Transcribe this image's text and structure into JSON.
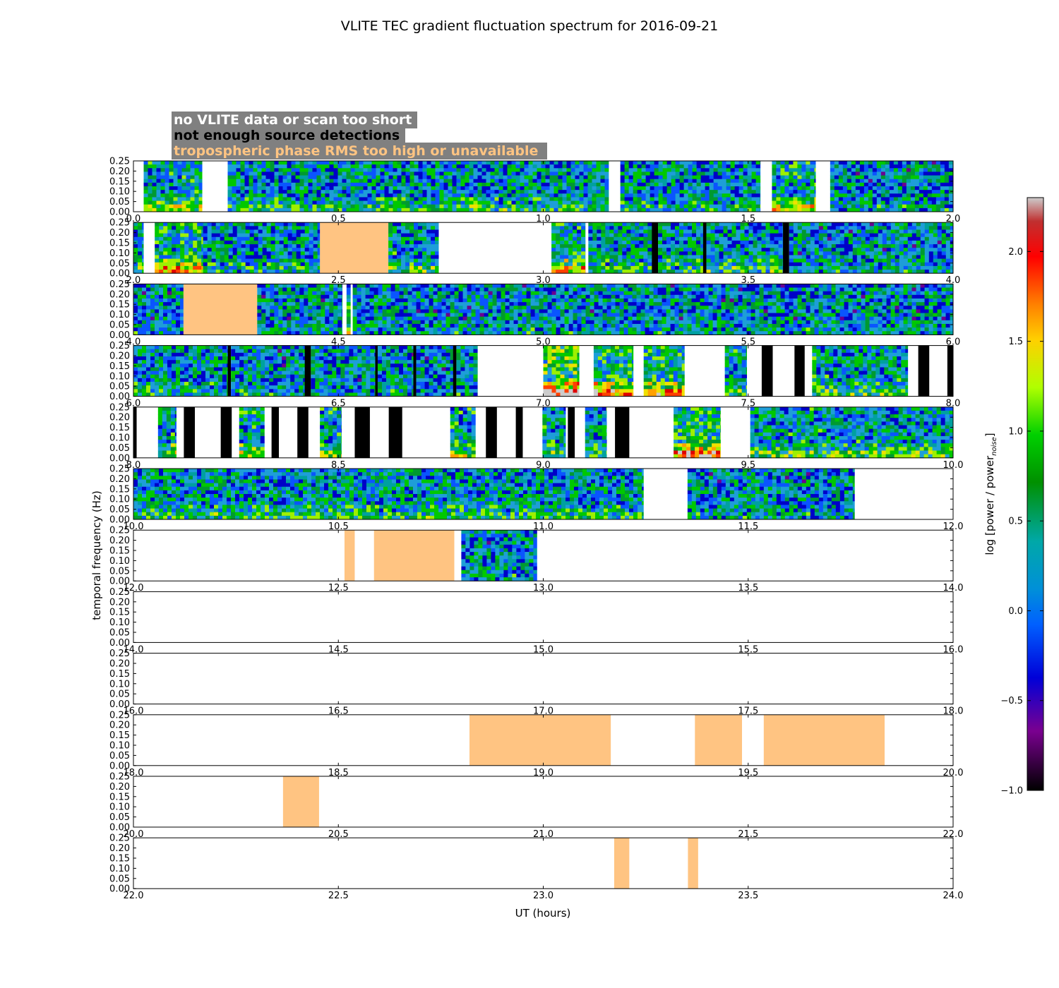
{
  "chart_data": {
    "type": "heatmap",
    "title": "VLITE TEC gradient fluctuation spectrum for 2016-09-21",
    "xlabel": "UT (hours)",
    "ylabel": "temporal frequency (Hz)",
    "ylim": [
      0,
      0.25
    ],
    "yticks": [
      0.0,
      0.05,
      0.1,
      0.15,
      0.2,
      0.25
    ],
    "panel_hours": 2,
    "xtick_step": 0.5,
    "colorbar": {
      "label": "log [power / power",
      "label_sub": "noise",
      "label_end": "]",
      "min": -1.0,
      "max": 2.3,
      "ticks": [
        -1.0,
        -0.5,
        0.0,
        0.5,
        1.0,
        1.5,
        2.0
      ],
      "colors": [
        "#000000",
        "#7a0090",
        "#0000d8",
        "#0080ff",
        "#00b0b0",
        "#009000",
        "#00d800",
        "#b0ff00",
        "#ffd000",
        "#ff8000",
        "#ff0000",
        "#cccccc"
      ]
    },
    "legend": [
      {
        "label": "no VLITE data or scan too short",
        "color": "#ffffff"
      },
      {
        "label": "not enough source detections",
        "color": "#000000"
      },
      {
        "label": "tropospheric phase RMS too high or unavailable",
        "color": "#ffc482"
      }
    ],
    "flag_colors": {
      "data": "#1e9ed8",
      "nodata": "#ffffff",
      "nodet": "#000000",
      "tropo": "#ffc482"
    },
    "panels": [
      {
        "start": 0,
        "end": 2,
        "segments": [
          {
            "type": "nodata",
            "from": 0.0,
            "to": 0.025
          },
          {
            "type": "data",
            "from": 0.025,
            "to": 0.168,
            "level": 0.3
          },
          {
            "type": "nodata",
            "from": 0.168,
            "to": 0.23
          },
          {
            "type": "data",
            "from": 0.23,
            "to": 1.16,
            "level": 0.15
          },
          {
            "type": "nodata",
            "from": 1.16,
            "to": 1.188
          },
          {
            "type": "data",
            "from": 1.188,
            "to": 1.53,
            "level": 0.1
          },
          {
            "type": "nodata",
            "from": 1.53,
            "to": 1.558
          },
          {
            "type": "data",
            "from": 1.558,
            "to": 1.665,
            "level": 0.4
          },
          {
            "type": "nodata",
            "from": 1.665,
            "to": 1.7
          },
          {
            "type": "data",
            "from": 1.7,
            "to": 2.0,
            "level": 0.05
          }
        ]
      },
      {
        "start": 2,
        "end": 4,
        "segments": [
          {
            "type": "data",
            "from": 2.0,
            "to": 2.025,
            "level": 0.2
          },
          {
            "type": "nodata",
            "from": 2.025,
            "to": 2.052
          },
          {
            "type": "data",
            "from": 2.052,
            "to": 2.17,
            "level": 0.45
          },
          {
            "type": "data",
            "from": 2.17,
            "to": 2.455,
            "level": 0.1
          },
          {
            "type": "tropo",
            "from": 2.455,
            "to": 2.622
          },
          {
            "type": "data",
            "from": 2.622,
            "to": 2.745,
            "level": 0.2
          },
          {
            "type": "nodata",
            "from": 2.745,
            "to": 3.02
          },
          {
            "type": "data",
            "from": 3.02,
            "to": 3.103,
            "level": 0.45
          },
          {
            "type": "nodata",
            "from": 3.103,
            "to": 3.11
          },
          {
            "type": "data",
            "from": 3.11,
            "to": 3.265,
            "level": 0.15
          },
          {
            "type": "nodet",
            "from": 3.265,
            "to": 3.28
          },
          {
            "type": "data",
            "from": 3.28,
            "to": 3.39,
            "level": 0.1
          },
          {
            "type": "nodet",
            "from": 3.39,
            "to": 3.398
          },
          {
            "type": "data",
            "from": 3.398,
            "to": 3.585,
            "level": 0.15
          },
          {
            "type": "nodet",
            "from": 3.585,
            "to": 3.6
          },
          {
            "type": "data",
            "from": 3.6,
            "to": 4.0,
            "level": 0.05
          }
        ]
      },
      {
        "start": 4,
        "end": 6,
        "segments": [
          {
            "type": "data",
            "from": 4.0,
            "to": 4.122,
            "level": 0.05
          },
          {
            "type": "tropo",
            "from": 4.122,
            "to": 4.302
          },
          {
            "type": "data",
            "from": 4.302,
            "to": 4.51,
            "level": 0.05
          },
          {
            "type": "nodata",
            "from": 4.51,
            "to": 4.52
          },
          {
            "type": "data",
            "from": 4.52,
            "to": 4.53,
            "level": 0.3
          },
          {
            "type": "nodata",
            "from": 4.53,
            "to": 4.535
          },
          {
            "type": "data",
            "from": 4.535,
            "to": 6.0,
            "level": 0.05
          }
        ]
      },
      {
        "start": 6,
        "end": 8,
        "segments": [
          {
            "type": "data",
            "from": 6.0,
            "to": 6.23,
            "level": 0.1
          },
          {
            "type": "nodet",
            "from": 6.23,
            "to": 6.238
          },
          {
            "type": "data",
            "from": 6.238,
            "to": 6.418,
            "level": 0.05
          },
          {
            "type": "nodet",
            "from": 6.418,
            "to": 6.433
          },
          {
            "type": "data",
            "from": 6.433,
            "to": 6.59,
            "level": 0.05
          },
          {
            "type": "nodet",
            "from": 6.59,
            "to": 6.596
          },
          {
            "type": "data",
            "from": 6.596,
            "to": 6.683,
            "level": 0.05
          },
          {
            "type": "nodet",
            "from": 6.683,
            "to": 6.69
          },
          {
            "type": "data",
            "from": 6.69,
            "to": 6.78,
            "level": 0.05
          },
          {
            "type": "nodet",
            "from": 6.78,
            "to": 6.788
          },
          {
            "type": "data",
            "from": 6.788,
            "to": 6.84,
            "level": 0.05
          },
          {
            "type": "nodata",
            "from": 6.84,
            "to": 7.0
          },
          {
            "type": "data",
            "from": 7.0,
            "to": 7.088,
            "level": 0.8
          },
          {
            "type": "nodata",
            "from": 7.088,
            "to": 7.123
          },
          {
            "type": "data",
            "from": 7.123,
            "to": 7.22,
            "level": 0.6
          },
          {
            "type": "nodata",
            "from": 7.22,
            "to": 7.245
          },
          {
            "type": "data",
            "from": 7.245,
            "to": 7.345,
            "level": 0.55
          },
          {
            "type": "nodata",
            "from": 7.345,
            "to": 7.443
          },
          {
            "type": "data",
            "from": 7.443,
            "to": 7.497,
            "level": 0.2
          },
          {
            "type": "nodata",
            "from": 7.497,
            "to": 7.533
          },
          {
            "type": "nodet",
            "from": 7.533,
            "to": 7.56
          },
          {
            "type": "nodata",
            "from": 7.56,
            "to": 7.613
          },
          {
            "type": "nodet",
            "from": 7.613,
            "to": 7.638
          },
          {
            "type": "nodata",
            "from": 7.638,
            "to": 7.656
          },
          {
            "type": "data",
            "from": 7.656,
            "to": 7.89,
            "level": 0.2
          },
          {
            "type": "nodata",
            "from": 7.89,
            "to": 7.915
          },
          {
            "type": "nodet",
            "from": 7.915,
            "to": 7.942
          },
          {
            "type": "nodata",
            "from": 7.942,
            "to": 7.986
          },
          {
            "type": "nodet",
            "from": 7.986,
            "to": 8.0
          }
        ]
      },
      {
        "start": 8,
        "end": 10,
        "segments": [
          {
            "type": "nodet",
            "from": 8.0,
            "to": 8.008
          },
          {
            "type": "nodata",
            "from": 8.008,
            "to": 8.06
          },
          {
            "type": "data",
            "from": 8.06,
            "to": 8.105,
            "level": 0.3
          },
          {
            "type": "nodata",
            "from": 8.105,
            "to": 8.123
          },
          {
            "type": "nodet",
            "from": 8.123,
            "to": 8.15
          },
          {
            "type": "nodata",
            "from": 8.15,
            "to": 8.213
          },
          {
            "type": "nodet",
            "from": 8.213,
            "to": 8.24
          },
          {
            "type": "nodata",
            "from": 8.24,
            "to": 8.258
          },
          {
            "type": "data",
            "from": 8.258,
            "to": 8.32,
            "level": 0.3
          },
          {
            "type": "nodata",
            "from": 8.32,
            "to": 8.337
          },
          {
            "type": "nodet",
            "from": 8.337,
            "to": 8.355
          },
          {
            "type": "nodata",
            "from": 8.355,
            "to": 8.4
          },
          {
            "type": "nodet",
            "from": 8.4,
            "to": 8.427
          },
          {
            "type": "nodata",
            "from": 8.427,
            "to": 8.455
          },
          {
            "type": "data",
            "from": 8.455,
            "to": 8.508,
            "level": 0.3
          },
          {
            "type": "nodata",
            "from": 8.508,
            "to": 8.54
          },
          {
            "type": "nodet",
            "from": 8.54,
            "to": 8.577
          },
          {
            "type": "nodata",
            "from": 8.577,
            "to": 8.623
          },
          {
            "type": "nodet",
            "from": 8.623,
            "to": 8.656
          },
          {
            "type": "nodata",
            "from": 8.656,
            "to": 8.773
          },
          {
            "type": "data",
            "from": 8.773,
            "to": 8.835,
            "level": 0.3
          },
          {
            "type": "nodata",
            "from": 8.835,
            "to": 8.86
          },
          {
            "type": "nodet",
            "from": 8.86,
            "to": 8.887
          },
          {
            "type": "nodata",
            "from": 8.887,
            "to": 8.933
          },
          {
            "type": "nodet",
            "from": 8.933,
            "to": 8.95
          },
          {
            "type": "nodata",
            "from": 8.95,
            "to": 8.998
          },
          {
            "type": "data",
            "from": 8.998,
            "to": 9.055,
            "level": 0.2
          },
          {
            "type": "nodata",
            "from": 9.055,
            "to": 9.06
          },
          {
            "type": "nodet",
            "from": 9.06,
            "to": 9.077
          },
          {
            "type": "nodata",
            "from": 9.077,
            "to": 9.102
          },
          {
            "type": "data",
            "from": 9.102,
            "to": 9.155,
            "level": 0.2
          },
          {
            "type": "nodata",
            "from": 9.155,
            "to": 9.175
          },
          {
            "type": "nodet",
            "from": 9.175,
            "to": 9.21
          },
          {
            "type": "nodata",
            "from": 9.21,
            "to": 9.318
          },
          {
            "type": "data",
            "from": 9.318,
            "to": 9.433,
            "level": 0.6
          },
          {
            "type": "nodata",
            "from": 9.433,
            "to": 9.505
          },
          {
            "type": "data",
            "from": 9.505,
            "to": 10.0,
            "level": 0.2
          }
        ]
      },
      {
        "start": 10,
        "end": 12,
        "segments": [
          {
            "type": "data",
            "from": 10.0,
            "to": 11.245,
            "level": 0.15
          },
          {
            "type": "nodata",
            "from": 11.245,
            "to": 11.352
          },
          {
            "type": "data",
            "from": 11.352,
            "to": 11.76,
            "level": 0.05
          },
          {
            "type": "nodata",
            "from": 11.76,
            "to": 12.0
          }
        ]
      },
      {
        "start": 12,
        "end": 14,
        "segments": [
          {
            "type": "nodata",
            "from": 12.0,
            "to": 12.515
          },
          {
            "type": "tropo",
            "from": 12.515,
            "to": 12.54
          },
          {
            "type": "nodata",
            "from": 12.54,
            "to": 12.587
          },
          {
            "type": "tropo",
            "from": 12.587,
            "to": 12.783
          },
          {
            "type": "nodata",
            "from": 12.783,
            "to": 12.8
          },
          {
            "type": "data",
            "from": 12.8,
            "to": 12.985,
            "level": 0.05
          },
          {
            "type": "nodata",
            "from": 12.985,
            "to": 14.0
          }
        ]
      },
      {
        "start": 14,
        "end": 16,
        "segments": [
          {
            "type": "nodata",
            "from": 14.0,
            "to": 16.0
          }
        ]
      },
      {
        "start": 16,
        "end": 18,
        "segments": [
          {
            "type": "nodata",
            "from": 16.0,
            "to": 18.0
          }
        ]
      },
      {
        "start": 18,
        "end": 20,
        "segments": [
          {
            "type": "nodata",
            "from": 18.0,
            "to": 18.82
          },
          {
            "type": "tropo",
            "from": 18.82,
            "to": 19.165
          },
          {
            "type": "nodata",
            "from": 19.165,
            "to": 19.37
          },
          {
            "type": "tropo",
            "from": 19.37,
            "to": 19.485
          },
          {
            "type": "nodata",
            "from": 19.485,
            "to": 19.538
          },
          {
            "type": "tropo",
            "from": 19.538,
            "to": 19.833
          },
          {
            "type": "nodata",
            "from": 19.833,
            "to": 20.0
          }
        ]
      },
      {
        "start": 20,
        "end": 22,
        "segments": [
          {
            "type": "nodata",
            "from": 20.0,
            "to": 20.365
          },
          {
            "type": "tropo",
            "from": 20.365,
            "to": 20.453
          },
          {
            "type": "nodata",
            "from": 20.453,
            "to": 22.0
          }
        ]
      },
      {
        "start": 22,
        "end": 24,
        "segments": [
          {
            "type": "nodata",
            "from": 22.0,
            "to": 23.173
          },
          {
            "type": "tropo",
            "from": 23.173,
            "to": 23.21
          },
          {
            "type": "nodata",
            "from": 23.21,
            "to": 23.353
          },
          {
            "type": "tropo",
            "from": 23.353,
            "to": 23.378
          },
          {
            "type": "nodata",
            "from": 23.378,
            "to": 24.0
          }
        ]
      }
    ]
  }
}
